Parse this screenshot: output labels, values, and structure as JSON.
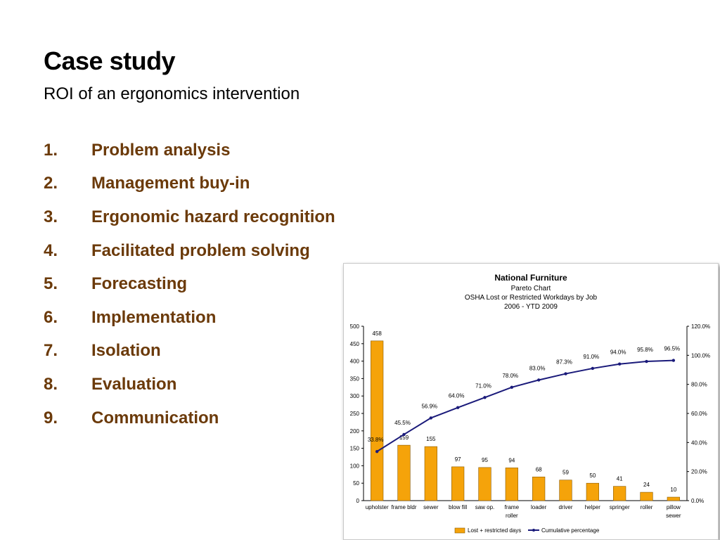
{
  "slide": {
    "title": "Case study",
    "subtitle": "ROI of an ergonomics intervention",
    "steps": [
      {
        "num": "1.",
        "label": "Problem analysis"
      },
      {
        "num": "2.",
        "label": "Management buy-in"
      },
      {
        "num": "3.",
        "label": "Ergonomic hazard recognition"
      },
      {
        "num": "4.",
        "label": "Facilitated problem solving"
      },
      {
        "num": "5.",
        "label": "Forecasting"
      },
      {
        "num": "6.",
        "label": "Implementation"
      },
      {
        "num": "7.",
        "label": "Isolation"
      },
      {
        "num": "8.",
        "label": "Evaluation"
      },
      {
        "num": "9.",
        "label": "Communication"
      }
    ],
    "colors": {
      "step_text": "#6b3a0a",
      "bar": "#f5a30a",
      "line": "#1a1a7a"
    }
  },
  "chart_data": {
    "type": "bar",
    "title": "National Furniture",
    "subtitle_lines": [
      "Pareto Chart",
      "OSHA Lost or Restricted Workdays by Job",
      "2006 - YTD 2009"
    ],
    "categories": [
      [
        "upholster"
      ],
      [
        "frame bldr"
      ],
      [
        "sewer"
      ],
      [
        "blow fill"
      ],
      [
        "saw op."
      ],
      [
        "frame",
        "roller"
      ],
      [
        "loader"
      ],
      [
        "driver"
      ],
      [
        "helper"
      ],
      [
        "springer"
      ],
      [
        "roller"
      ],
      [
        "pillow",
        "sewer"
      ]
    ],
    "series": [
      {
        "name": "Lost + restricted days",
        "type": "bar",
        "axis": "left",
        "values": [
          458,
          159,
          155,
          97,
          95,
          94,
          68,
          59,
          50,
          41,
          24,
          10
        ]
      },
      {
        "name": "Cumulative percentage",
        "type": "line",
        "axis": "right",
        "values": [
          33.8,
          45.5,
          56.9,
          64.0,
          71.0,
          78.0,
          83.0,
          87.3,
          91.0,
          94.0,
          95.8,
          96.5
        ],
        "labels": [
          "33.8%",
          "45.5%",
          "56.9%",
          "64.0%",
          "71.0%",
          "78.0%",
          "83.0%",
          "87.3%",
          "91.0%",
          "94.0%",
          "95.8%",
          "96.5%"
        ]
      }
    ],
    "ylim": [
      0,
      500
    ],
    "yticks": [
      "0",
      "50",
      "100",
      "150",
      "200",
      "250",
      "300",
      "350",
      "400",
      "450",
      "500"
    ],
    "y2lim": [
      0,
      120
    ],
    "y2ticks": [
      "0.0%",
      "20.0%",
      "40.0%",
      "60.0%",
      "80.0%",
      "100.0%",
      "120.0%"
    ],
    "grid": false,
    "legend_position": "bottom"
  }
}
